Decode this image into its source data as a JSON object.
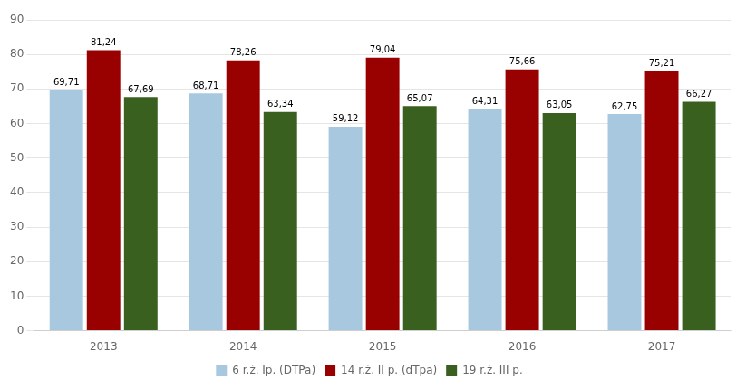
{
  "chart_data": {
    "type": "bar",
    "categories": [
      "2013",
      "2014",
      "2015",
      "2016",
      "2017"
    ],
    "series": [
      {
        "name": "6 r.ż. Ip. (DTPa)",
        "color": "#a8c8e0",
        "values": [
          69.71,
          68.71,
          59.12,
          64.31,
          62.75
        ],
        "value_labels": [
          "69,71",
          "68,71",
          "59,12",
          "64,31",
          "62,75"
        ]
      },
      {
        "name": "14 r.ż. II p. (dTpa)",
        "color": "#990000",
        "values": [
          81.24,
          78.26,
          79.04,
          75.66,
          75.21
        ],
        "value_labels": [
          "81,24",
          "78,26",
          "79,04",
          "75,66",
          "75,21"
        ]
      },
      {
        "name": "19 r.ż. III p.",
        "color": "#3a6020",
        "values": [
          67.69,
          63.34,
          65.07,
          63.05,
          66.27
        ],
        "value_labels": [
          "67,69",
          "63,34",
          "65,07",
          "63,05",
          "66,27"
        ]
      }
    ],
    "ylim": [
      0,
      90
    ],
    "yticks": [
      0,
      10,
      20,
      30,
      40,
      50,
      60,
      70,
      80,
      90
    ],
    "grid": true,
    "legend": "bottom",
    "data_labels": true
  }
}
